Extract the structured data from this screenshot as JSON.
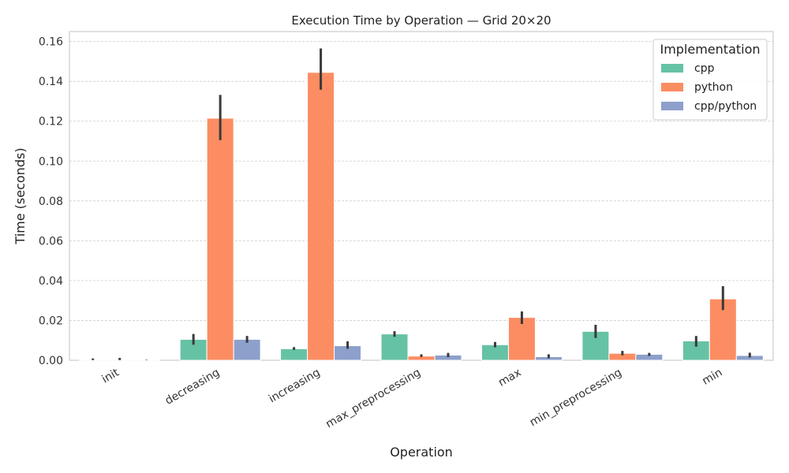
{
  "chart_data": {
    "type": "bar",
    "title": "Execution Time by Operation — Grid 20×20",
    "xlabel": "Operation",
    "ylabel": "Time (seconds)",
    "ylim": [
      0,
      0.165
    ],
    "yticks": [
      0.0,
      0.02,
      0.04,
      0.06,
      0.08,
      0.1,
      0.12,
      0.14,
      0.16
    ],
    "ytick_labels": [
      "0.00",
      "0.02",
      "0.04",
      "0.06",
      "0.08",
      "0.10",
      "0.12",
      "0.14",
      "0.16"
    ],
    "grid": true,
    "legend": {
      "title": "Implementation",
      "placement": "top-right"
    },
    "categories": [
      "init",
      "decreasing",
      "increasing",
      "max_preprocessing",
      "max",
      "min_preprocessing",
      "min"
    ],
    "series": [
      {
        "name": "cpp",
        "color": "#66c2a5",
        "values": [
          0.0002,
          0.0105,
          0.0058,
          0.0132,
          0.0078,
          0.0145,
          0.0097
        ],
        "err_low": [
          0.0001,
          0.0078,
          0.0052,
          0.0118,
          0.0065,
          0.0112,
          0.0068
        ],
        "err_high": [
          0.0009,
          0.0132,
          0.0066,
          0.0146,
          0.0092,
          0.0178,
          0.0122
        ]
      },
      {
        "name": "python",
        "color": "#fc8d62",
        "values": [
          0.0004,
          0.1215,
          0.1445,
          0.0021,
          0.0215,
          0.0035,
          0.0308
        ],
        "err_low": [
          0.0001,
          0.1105,
          0.1358,
          0.0016,
          0.0182,
          0.0025,
          0.0252
        ],
        "err_high": [
          0.0012,
          0.1332,
          0.1565,
          0.003,
          0.0245,
          0.0047,
          0.0372
        ]
      },
      {
        "name": "cpp/python",
        "color": "#8da0cb",
        "values": [
          0.0003,
          0.0105,
          0.0073,
          0.0026,
          0.0018,
          0.003,
          0.0024
        ],
        "err_low": [
          0.0002,
          0.0088,
          0.0058,
          0.0016,
          0.001,
          0.0022,
          0.0014
        ],
        "err_high": [
          0.0004,
          0.0122,
          0.0095,
          0.0037,
          0.003,
          0.0037,
          0.0038
        ]
      }
    ]
  }
}
